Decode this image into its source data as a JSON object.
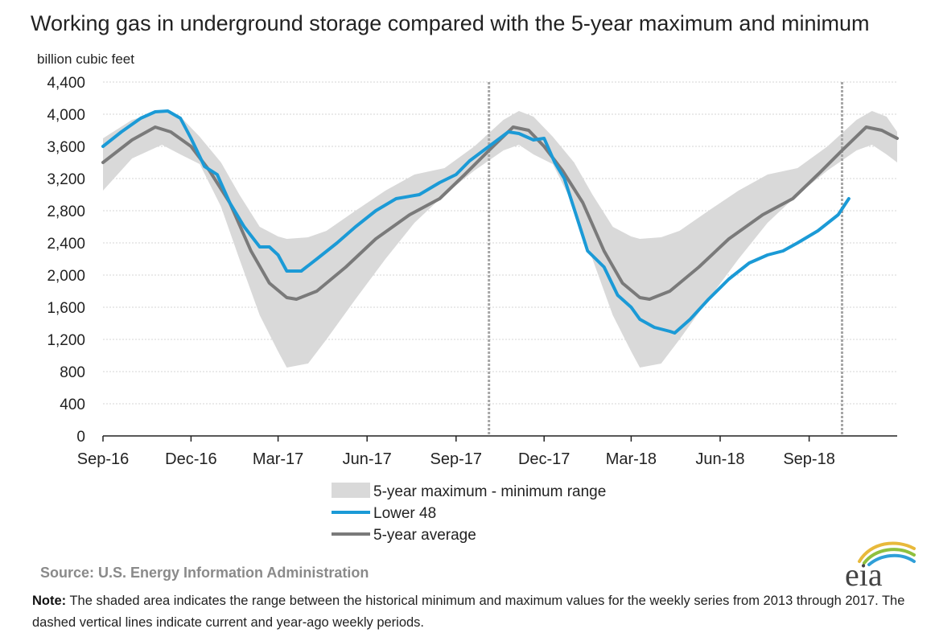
{
  "chart_data": {
    "type": "line",
    "title": "Working gas in underground  storage compared with the 5-year maximum and minimum",
    "ylabel": "billion cubic feet",
    "ylim": [
      0,
      4400
    ],
    "yticks": [
      0,
      400,
      800,
      1200,
      1600,
      2000,
      2400,
      2800,
      3200,
      3600,
      4000,
      4400
    ],
    "ytick_labels": [
      "0",
      "400",
      "800",
      "1,200",
      "1,600",
      "2,000",
      "2,400",
      "2,800",
      "3,200",
      "3,600",
      "4,000",
      "4,400"
    ],
    "xlim": [
      "2016-09-01",
      "2018-12-01"
    ],
    "xticks": [
      "2016-09-01",
      "2016-12-01",
      "2017-03-01",
      "2017-06-01",
      "2017-09-01",
      "2017-12-01",
      "2018-03-01",
      "2018-06-01",
      "2018-09-01"
    ],
    "xtick_labels": [
      "Sep-16",
      "Dec-16",
      "Mar-17",
      "Jun-17",
      "Sep-17",
      "Dec-17",
      "Mar-18",
      "Jun-18",
      "Sep-18"
    ],
    "grid": "horizontal",
    "legend_position": "bottom-center",
    "reference_lines": [
      "2017-10-05",
      "2018-10-05"
    ],
    "range": {
      "name": "5-year maximum - minimum range",
      "color": "#d9d9d9",
      "points": [
        {
          "x": "2016-09-01",
          "min": 3050,
          "max": 3700
        },
        {
          "x": "2016-10-01",
          "min": 3450,
          "max": 3930
        },
        {
          "x": "2016-11-01",
          "min": 3620,
          "max": 4040
        },
        {
          "x": "2016-11-20",
          "min": 3500,
          "max": 3970
        },
        {
          "x": "2016-12-10",
          "min": 3380,
          "max": 3720
        },
        {
          "x": "2017-01-01",
          "min": 2850,
          "max": 3400
        },
        {
          "x": "2017-01-20",
          "min": 2200,
          "max": 3000
        },
        {
          "x": "2017-02-10",
          "min": 1500,
          "max": 2600
        },
        {
          "x": "2017-03-01",
          "min": 1050,
          "max": 2480
        },
        {
          "x": "2017-03-10",
          "min": 850,
          "max": 2450
        },
        {
          "x": "2017-04-01",
          "min": 900,
          "max": 2470
        },
        {
          "x": "2017-04-20",
          "min": 1200,
          "max": 2550
        },
        {
          "x": "2017-05-20",
          "min": 1700,
          "max": 2800
        },
        {
          "x": "2017-06-20",
          "min": 2200,
          "max": 3050
        },
        {
          "x": "2017-07-20",
          "min": 2650,
          "max": 3250
        },
        {
          "x": "2017-08-20",
          "min": 3000,
          "max": 3330
        },
        {
          "x": "2017-09-20",
          "min": 3300,
          "max": 3600
        },
        {
          "x": "2017-10-20",
          "min": 3550,
          "max": 3930
        },
        {
          "x": "2017-11-05",
          "min": 3620,
          "max": 4040
        },
        {
          "x": "2017-11-20",
          "min": 3500,
          "max": 3970
        },
        {
          "x": "2017-12-10",
          "min": 3380,
          "max": 3720
        },
        {
          "x": "2018-01-01",
          "min": 2850,
          "max": 3400
        },
        {
          "x": "2018-01-20",
          "min": 2200,
          "max": 3000
        },
        {
          "x": "2018-02-10",
          "min": 1500,
          "max": 2600
        },
        {
          "x": "2018-03-01",
          "min": 1050,
          "max": 2480
        },
        {
          "x": "2018-03-10",
          "min": 850,
          "max": 2450
        },
        {
          "x": "2018-04-01",
          "min": 900,
          "max": 2470
        },
        {
          "x": "2018-04-20",
          "min": 1200,
          "max": 2550
        },
        {
          "x": "2018-05-20",
          "min": 1700,
          "max": 2800
        },
        {
          "x": "2018-06-20",
          "min": 2200,
          "max": 3050
        },
        {
          "x": "2018-07-20",
          "min": 2650,
          "max": 3250
        },
        {
          "x": "2018-08-20",
          "min": 3000,
          "max": 3330
        },
        {
          "x": "2018-09-20",
          "min": 3300,
          "max": 3600
        },
        {
          "x": "2018-10-20",
          "min": 3550,
          "max": 3930
        },
        {
          "x": "2018-11-05",
          "min": 3620,
          "max": 4040
        },
        {
          "x": "2018-11-20",
          "min": 3500,
          "max": 3970
        },
        {
          "x": "2018-12-01",
          "min": 3400,
          "max": 3780
        }
      ]
    },
    "series": [
      {
        "name": "Lower 48",
        "color": "#1b9ad6",
        "points": [
          {
            "x": "2016-09-01",
            "y": 3600
          },
          {
            "x": "2016-09-20",
            "y": 3780
          },
          {
            "x": "2016-10-10",
            "y": 3950
          },
          {
            "x": "2016-10-25",
            "y": 4030
          },
          {
            "x": "2016-11-07",
            "y": 4040
          },
          {
            "x": "2016-11-20",
            "y": 3950
          },
          {
            "x": "2016-12-01",
            "y": 3700
          },
          {
            "x": "2016-12-15",
            "y": 3350
          },
          {
            "x": "2016-12-28",
            "y": 3250
          },
          {
            "x": "2017-01-10",
            "y": 2900
          },
          {
            "x": "2017-01-25",
            "y": 2600
          },
          {
            "x": "2017-02-10",
            "y": 2350
          },
          {
            "x": "2017-02-20",
            "y": 2350
          },
          {
            "x": "2017-03-01",
            "y": 2250
          },
          {
            "x": "2017-03-10",
            "y": 2050
          },
          {
            "x": "2017-03-25",
            "y": 2050
          },
          {
            "x": "2017-04-10",
            "y": 2200
          },
          {
            "x": "2017-05-01",
            "y": 2400
          },
          {
            "x": "2017-05-20",
            "y": 2600
          },
          {
            "x": "2017-06-10",
            "y": 2800
          },
          {
            "x": "2017-07-01",
            "y": 2950
          },
          {
            "x": "2017-07-25",
            "y": 3000
          },
          {
            "x": "2017-08-15",
            "y": 3150
          },
          {
            "x": "2017-09-01",
            "y": 3250
          },
          {
            "x": "2017-09-15",
            "y": 3420
          },
          {
            "x": "2017-10-05",
            "y": 3600
          },
          {
            "x": "2017-10-25",
            "y": 3780
          },
          {
            "x": "2017-11-05",
            "y": 3760
          },
          {
            "x": "2017-11-20",
            "y": 3680
          },
          {
            "x": "2017-12-01",
            "y": 3700
          },
          {
            "x": "2017-12-12",
            "y": 3400
          },
          {
            "x": "2017-12-22",
            "y": 3200
          },
          {
            "x": "2018-01-03",
            "y": 2750
          },
          {
            "x": "2018-01-15",
            "y": 2300
          },
          {
            "x": "2018-02-01",
            "y": 2100
          },
          {
            "x": "2018-02-15",
            "y": 1750
          },
          {
            "x": "2018-03-01",
            "y": 1600
          },
          {
            "x": "2018-03-10",
            "y": 1450
          },
          {
            "x": "2018-03-25",
            "y": 1350
          },
          {
            "x": "2018-04-10",
            "y": 1300
          },
          {
            "x": "2018-04-15",
            "y": 1280
          },
          {
            "x": "2018-05-01",
            "y": 1450
          },
          {
            "x": "2018-05-20",
            "y": 1700
          },
          {
            "x": "2018-06-10",
            "y": 1950
          },
          {
            "x": "2018-07-01",
            "y": 2150
          },
          {
            "x": "2018-07-20",
            "y": 2250
          },
          {
            "x": "2018-08-05",
            "y": 2300
          },
          {
            "x": "2018-08-20",
            "y": 2400
          },
          {
            "x": "2018-09-10",
            "y": 2550
          },
          {
            "x": "2018-10-01",
            "y": 2750
          },
          {
            "x": "2018-10-12",
            "y": 2950
          }
        ]
      },
      {
        "name": "5-year average",
        "color": "#7a7a7a",
        "points": [
          {
            "x": "2016-09-01",
            "y": 3400
          },
          {
            "x": "2016-10-01",
            "y": 3680
          },
          {
            "x": "2016-10-25",
            "y": 3840
          },
          {
            "x": "2016-11-10",
            "y": 3780
          },
          {
            "x": "2016-12-01",
            "y": 3600
          },
          {
            "x": "2016-12-20",
            "y": 3300
          },
          {
            "x": "2017-01-10",
            "y": 2900
          },
          {
            "x": "2017-02-01",
            "y": 2300
          },
          {
            "x": "2017-02-20",
            "y": 1900
          },
          {
            "x": "2017-03-10",
            "y": 1720
          },
          {
            "x": "2017-03-20",
            "y": 1700
          },
          {
            "x": "2017-04-10",
            "y": 1800
          },
          {
            "x": "2017-05-10",
            "y": 2100
          },
          {
            "x": "2017-06-10",
            "y": 2450
          },
          {
            "x": "2017-07-15",
            "y": 2750
          },
          {
            "x": "2017-08-15",
            "y": 2950
          },
          {
            "x": "2017-09-10",
            "y": 3250
          },
          {
            "x": "2017-10-05",
            "y": 3550
          },
          {
            "x": "2017-10-30",
            "y": 3840
          },
          {
            "x": "2017-11-15",
            "y": 3800
          },
          {
            "x": "2017-12-01",
            "y": 3600
          },
          {
            "x": "2017-12-20",
            "y": 3300
          },
          {
            "x": "2018-01-10",
            "y": 2900
          },
          {
            "x": "2018-02-01",
            "y": 2300
          },
          {
            "x": "2018-02-20",
            "y": 1900
          },
          {
            "x": "2018-03-10",
            "y": 1720
          },
          {
            "x": "2018-03-20",
            "y": 1700
          },
          {
            "x": "2018-04-10",
            "y": 1800
          },
          {
            "x": "2018-05-10",
            "y": 2100
          },
          {
            "x": "2018-06-10",
            "y": 2450
          },
          {
            "x": "2018-07-15",
            "y": 2750
          },
          {
            "x": "2018-08-15",
            "y": 2950
          },
          {
            "x": "2018-09-10",
            "y": 3250
          },
          {
            "x": "2018-10-05",
            "y": 3550
          },
          {
            "x": "2018-10-30",
            "y": 3840
          },
          {
            "x": "2018-11-15",
            "y": 3800
          },
          {
            "x": "2018-12-01",
            "y": 3700
          }
        ]
      }
    ]
  },
  "legend": [
    {
      "label": "5-year maximum - minimum range"
    },
    {
      "label": "Lower 48"
    },
    {
      "label": "5-year average"
    }
  ],
  "source": "Source:  U.S. Energy Information Administration",
  "note": {
    "label": "Note:",
    "text": " The shaded area indicates the range between the historical minimum and maximum values for the weekly series from 2013 through 2017. The dashed vertical lines indicate current and year-ago weekly periods."
  },
  "logo": {
    "text": "eia"
  }
}
